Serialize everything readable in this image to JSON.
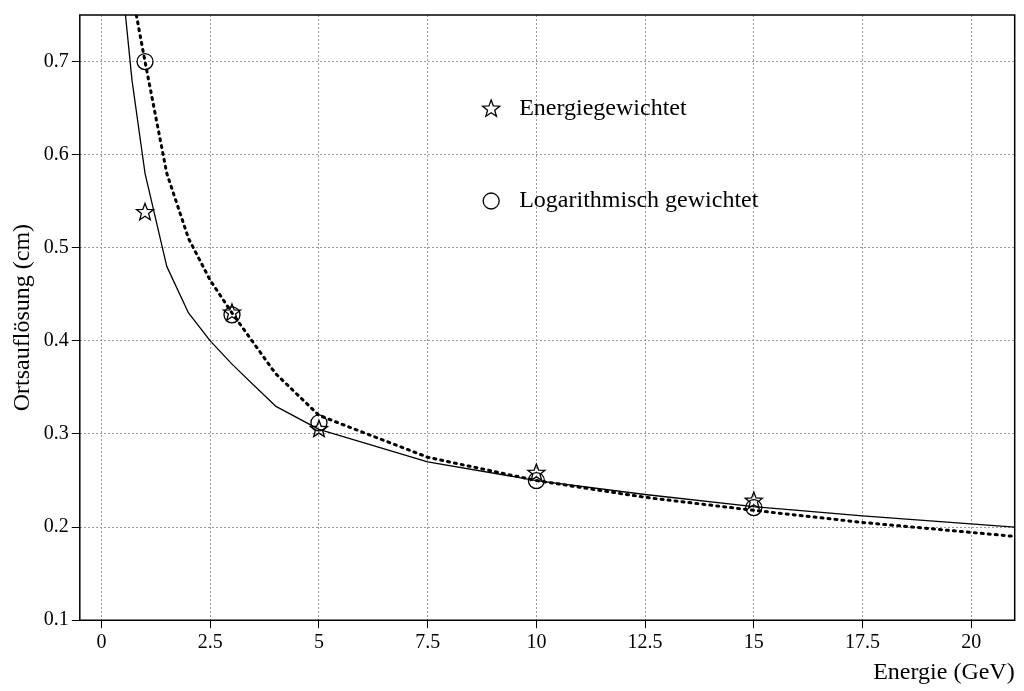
{
  "chart_data": {
    "type": "scatter",
    "xlabel": "Energie (GeV)",
    "ylabel": "Ortsauflösung (cm)",
    "xlim": [
      -0.5,
      21
    ],
    "ylim": [
      0.1,
      0.75
    ],
    "xticks": [
      0,
      2.5,
      5,
      7.5,
      10,
      12.5,
      15,
      17.5,
      20
    ],
    "yticks": [
      0.1,
      0.2,
      0.3,
      0.4,
      0.5,
      0.6,
      0.7
    ],
    "grid": true,
    "legend": "top right",
    "series": [
      {
        "type": "line",
        "color": "#000000",
        "marker": "none",
        "line_style": "solid",
        "x": [
          0.55,
          0.7,
          1,
          1.5,
          2,
          2.5,
          3,
          4,
          5,
          7.5,
          10,
          12.5,
          15,
          17.5,
          21
        ],
        "values": [
          0.75,
          0.68,
          0.58,
          0.48,
          0.43,
          0.4,
          0.375,
          0.33,
          0.305,
          0.27,
          0.25,
          0.235,
          0.222,
          0.212,
          0.2
        ]
      },
      {
        "type": "line",
        "color": "#000000",
        "marker": "none",
        "line_style": "dotted",
        "x": [
          0.8,
          1,
          1.5,
          2,
          2.5,
          3,
          4,
          5,
          7.5,
          10,
          12.5,
          15,
          17.5,
          21
        ],
        "values": [
          0.75,
          0.7,
          0.58,
          0.51,
          0.465,
          0.43,
          0.365,
          0.32,
          0.275,
          0.25,
          0.232,
          0.218,
          0.205,
          0.19
        ]
      },
      {
        "name": "Energiegewichtet",
        "color": "#000000",
        "marker": "star",
        "x": [
          1,
          3,
          5,
          10,
          15
        ],
        "values": [
          0.538,
          0.43,
          0.305,
          0.258,
          0.228
        ]
      },
      {
        "name": "Logarithmisch gewichtet",
        "color": "#000000",
        "marker": "circle",
        "x": [
          1,
          3,
          5,
          10,
          15
        ],
        "values": [
          0.7,
          0.428,
          0.312,
          0.25,
          0.221
        ]
      }
    ]
  }
}
